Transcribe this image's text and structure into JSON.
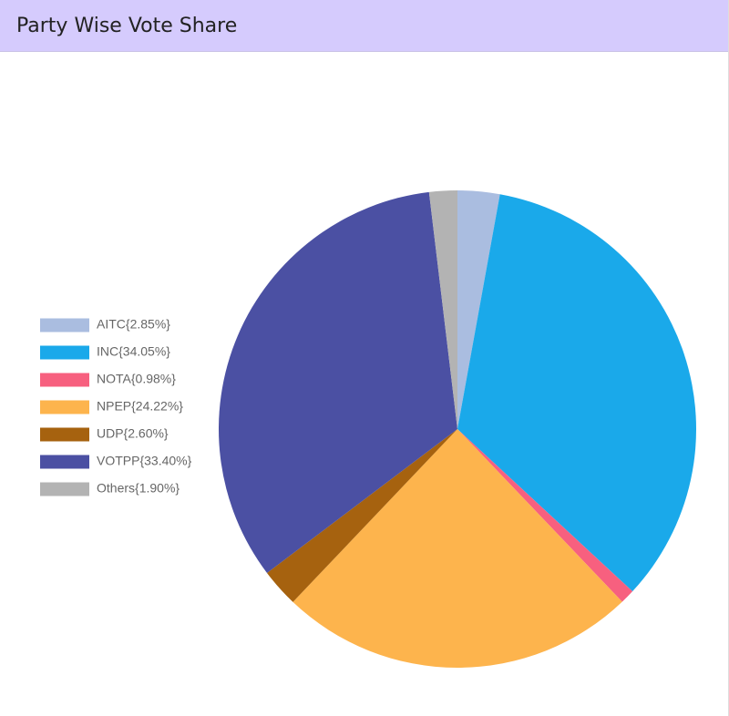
{
  "header": {
    "title": "Party Wise Vote Share"
  },
  "chart_data": {
    "type": "pie",
    "categories": [
      "AITC{2.85%}",
      "INC{34.05%}",
      "NOTA{0.98%}",
      "NPEP{24.22%}",
      "UDP{2.60%}",
      "VOTPP{33.40%}",
      "Others{1.90%}"
    ],
    "values": [
      2.85,
      34.05,
      0.98,
      24.22,
      2.6,
      33.4,
      1.9
    ],
    "colors": [
      "#aabde0",
      "#1aa9ea",
      "#f7607f",
      "#fdb44d",
      "#a6620f",
      "#4b50a3",
      "#b3b3b3"
    ],
    "legend": "left"
  }
}
